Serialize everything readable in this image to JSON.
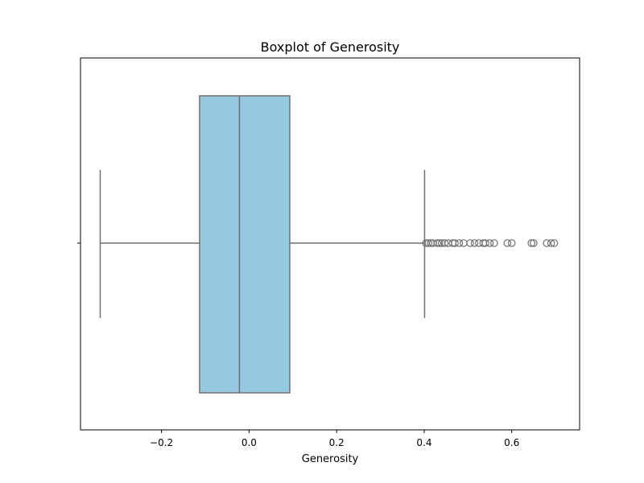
{
  "chart_data": {
    "type": "box",
    "title": "Boxplot of Generosity",
    "xlabel": "Generosity",
    "ylabel": "",
    "xlim": [
      -0.385,
      0.755
    ],
    "orientation": "horizontal",
    "box": {
      "whisker_low": -0.34,
      "q1": -0.113,
      "median": -0.022,
      "q3": 0.093,
      "whisker_high": 0.401
    },
    "outliers": [
      0.404,
      0.41,
      0.415,
      0.42,
      0.43,
      0.435,
      0.44,
      0.447,
      0.455,
      0.465,
      0.47,
      0.48,
      0.49,
      0.505,
      0.515,
      0.525,
      0.535,
      0.54,
      0.55,
      0.56,
      0.59,
      0.6,
      0.645,
      0.65,
      0.68,
      0.69,
      0.697
    ],
    "x_ticks": [
      -0.2,
      0.0,
      0.2,
      0.4,
      0.6
    ],
    "x_tick_labels": [
      "−0.2",
      "0.0",
      "0.2",
      "0.4",
      "0.6"
    ],
    "grid": false,
    "colors": {
      "box_fill": "#95C8E1",
      "line": "#707070",
      "frame": "#000000",
      "background": "#ffffff"
    }
  }
}
